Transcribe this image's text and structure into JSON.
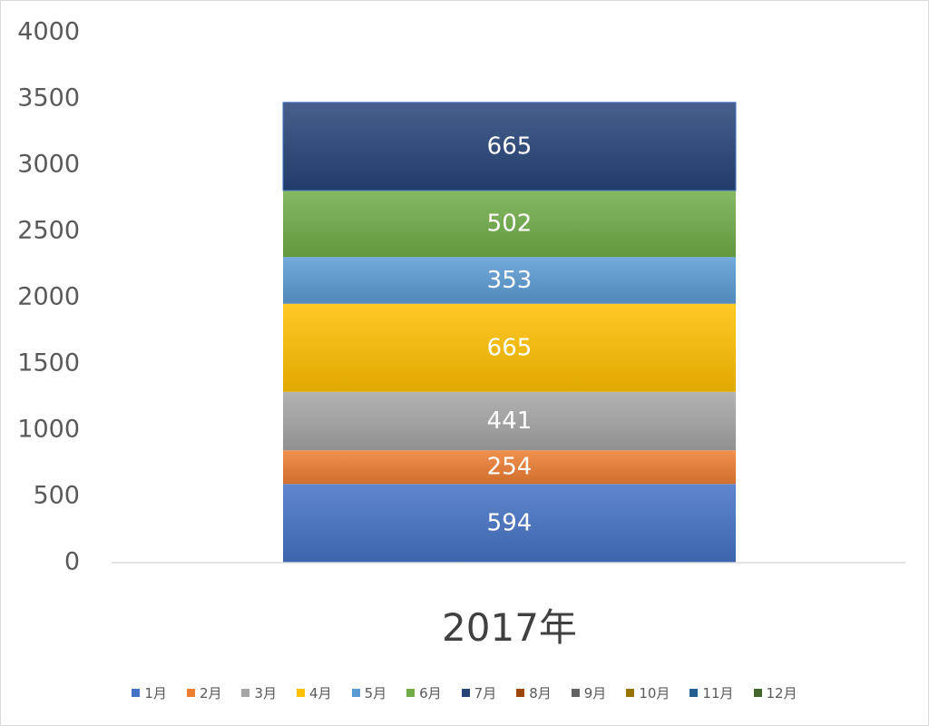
{
  "chart_data": {
    "type": "bar",
    "stacked": true,
    "categories": [
      "2017年"
    ],
    "series": [
      {
        "name": "1月",
        "values": [
          594
        ],
        "color": "#4472C4"
      },
      {
        "name": "2月",
        "values": [
          254
        ],
        "color": "#ED7D31"
      },
      {
        "name": "3月",
        "values": [
          441
        ],
        "color": "#A5A5A5"
      },
      {
        "name": "4月",
        "values": [
          665
        ],
        "color": "#FFC000"
      },
      {
        "name": "5月",
        "values": [
          353
        ],
        "color": "#5B9BD5"
      },
      {
        "name": "6月",
        "values": [
          502
        ],
        "color": "#70AD47"
      },
      {
        "name": "7月",
        "values": [
          665
        ],
        "color": "#264478"
      },
      {
        "name": "8月",
        "values": [
          null
        ],
        "color": "#9E480E"
      },
      {
        "name": "9月",
        "values": [
          null
        ],
        "color": "#636363"
      },
      {
        "name": "10月",
        "values": [
          null
        ],
        "color": "#997300"
      },
      {
        "name": "11月",
        "values": [
          null
        ],
        "color": "#255E91"
      },
      {
        "name": "12月",
        "values": [
          null
        ],
        "color": "#43682B"
      }
    ],
    "ylim": [
      0,
      4000
    ],
    "yticks": [
      0,
      500,
      1000,
      1500,
      2000,
      2500,
      3000,
      3500,
      4000
    ],
    "grid": false,
    "data_labels": true,
    "legend": "bottom",
    "title": "",
    "xlabel": "",
    "ylabel": ""
  }
}
